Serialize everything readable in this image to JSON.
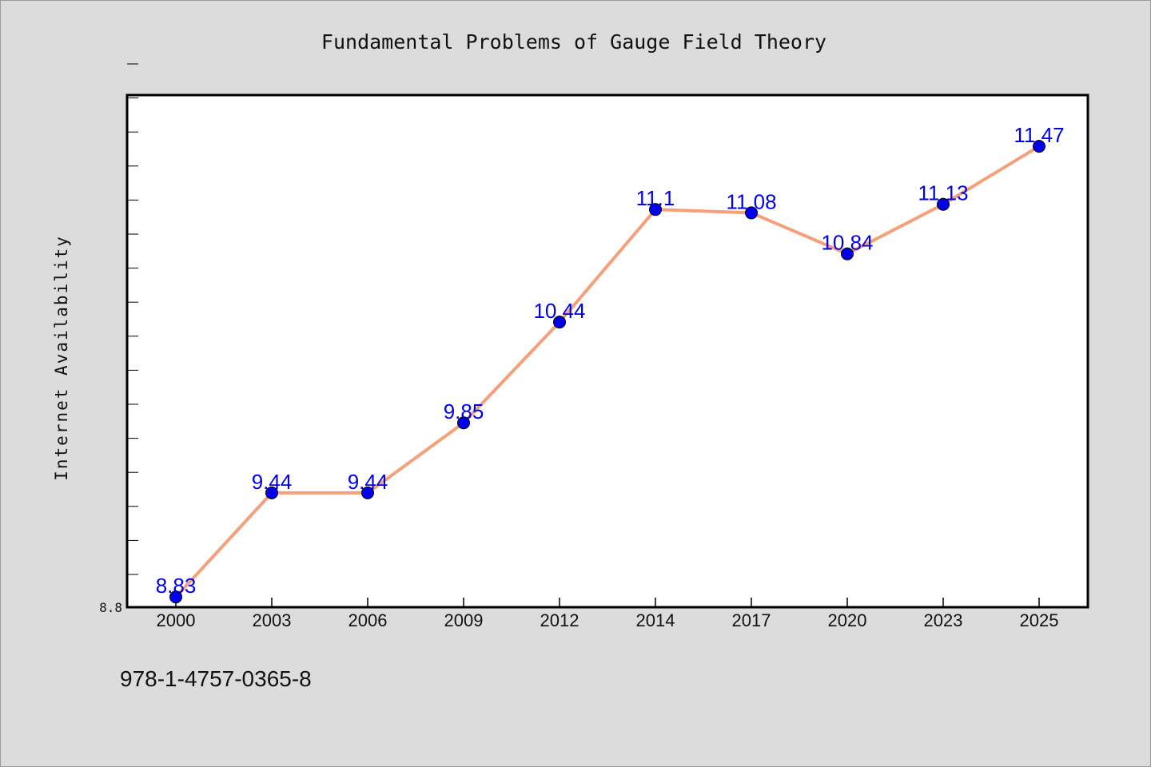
{
  "chart_data": {
    "type": "line",
    "title": "Fundamental Problems of Gauge Field Theory",
    "xlabel": "",
    "ylabel": "Internet Availability",
    "categories": [
      "2000",
      "2003",
      "2006",
      "2009",
      "2012",
      "2014",
      "2017",
      "2020",
      "2023",
      "2025"
    ],
    "series": [
      {
        "values": [
          8.83,
          9.44,
          9.44,
          9.85,
          10.44,
          11.1,
          11.08,
          10.84,
          11.13,
          11.47
        ],
        "labels": [
          "8.83",
          "9.44",
          "9.44",
          "9.85",
          "10.44",
          "11.1",
          "11.08",
          "10.84",
          "11.13",
          "11.47"
        ],
        "line_color": "#f5a07a",
        "marker_color": "#0000ee",
        "label_color": "#0000ee"
      }
    ],
    "ylim": [
      8.77,
      11.77
    ],
    "yticks_labeled": [
      "8.8"
    ],
    "grid": false,
    "legend": "none"
  },
  "footer": {
    "isbn": "978-1-4757-0365-8"
  }
}
